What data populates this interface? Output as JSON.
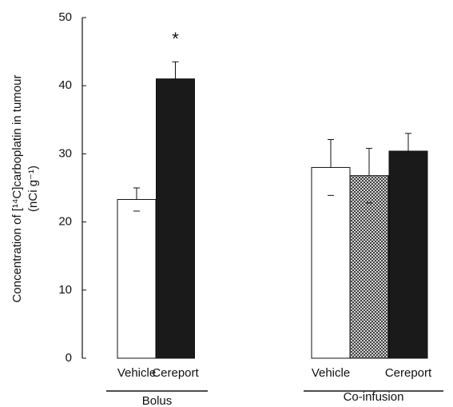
{
  "chart_data": {
    "type": "bar",
    "ylabel": [
      "Concentration of [¹⁴C]carboplatin in tumour",
      "(nCi g⁻¹)"
    ],
    "categories": [
      "Vehicle",
      "Cereport",
      "Vehicle",
      null,
      "Cereport"
    ],
    "series": [
      {
        "values": [
          23.3,
          41,
          28,
          26.8,
          30.4
        ],
        "errors": [
          1.7,
          2.5,
          4.1,
          4.0,
          2.6
        ],
        "colors": [
          "#ffffff",
          "#1a1a1a",
          "#ffffff",
          "crosshatch",
          "#1a1a1a"
        ]
      }
    ],
    "groups": [
      {
        "name": "Bolus",
        "size": 2
      },
      {
        "name": "Co-infusion",
        "size": 3
      }
    ],
    "annotations": [
      {
        "text": "*",
        "category": 1
      }
    ],
    "ylim": [
      0,
      50
    ],
    "yticks": [
      0,
      10,
      20,
      30,
      40,
      50
    ]
  }
}
